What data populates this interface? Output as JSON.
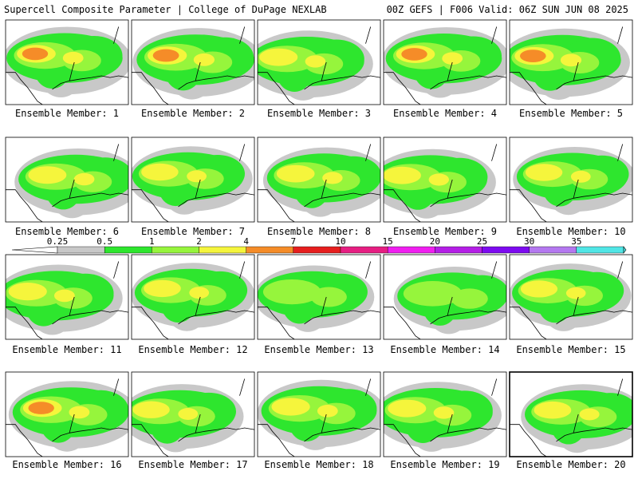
{
  "header": {
    "title": "Supercell Composite Parameter | College of DuPage NEXLAB",
    "run_info": "00Z GEFS | F006 Valid: 06Z SUN JUN 08 2025"
  },
  "colorbar": {
    "ticks": [
      "0.25",
      "0.5",
      "1",
      "2",
      "4",
      "7",
      "10",
      "15",
      "20",
      "25",
      "30",
      "35"
    ],
    "colors": [
      "#c8c8c8",
      "#2ee62e",
      "#96f53c",
      "#f5f53c",
      "#f58c28",
      "#e61e1e",
      "#e61e82",
      "#f01ef0",
      "#b41ee6",
      "#7d0af0",
      "#b478f0",
      "#50e6e6"
    ]
  },
  "panels": [
    {
      "label": "Ensemble Member: 1",
      "intensity": 4.0
    },
    {
      "label": "Ensemble Member: 2",
      "intensity": 4.3
    },
    {
      "label": "Ensemble Member: 3",
      "intensity": 3.8
    },
    {
      "label": "Ensemble Member: 4",
      "intensity": 4.0
    },
    {
      "label": "Ensemble Member: 5",
      "intensity": 4.2
    },
    {
      "label": "Ensemble Member: 6",
      "intensity": 3.7
    },
    {
      "label": "Ensemble Member: 7",
      "intensity": 3.2
    },
    {
      "label": "Ensemble Member: 8",
      "intensity": 3.6
    },
    {
      "label": "Ensemble Member: 9",
      "intensity": 3.6
    },
    {
      "label": "Ensemble Member: 10",
      "intensity": 3.1
    },
    {
      "label": "Ensemble Member: 11",
      "intensity": 3.9
    },
    {
      "label": "Ensemble Member: 12",
      "intensity": 3.2
    },
    {
      "label": "Ensemble Member: 13",
      "intensity": 2.6
    },
    {
      "label": "Ensemble Member: 14",
      "intensity": 2.9
    },
    {
      "label": "Ensemble Member: 15",
      "intensity": 3.0
    },
    {
      "label": "Ensemble Member: 16",
      "intensity": 4.0
    },
    {
      "label": "Ensemble Member: 17",
      "intensity": 3.1
    },
    {
      "label": "Ensemble Member: 18",
      "intensity": 3.9
    },
    {
      "label": "Ensemble Member: 19",
      "intensity": 3.8
    },
    {
      "label": "Ensemble Member: 20",
      "intensity": 3.3
    }
  ]
}
